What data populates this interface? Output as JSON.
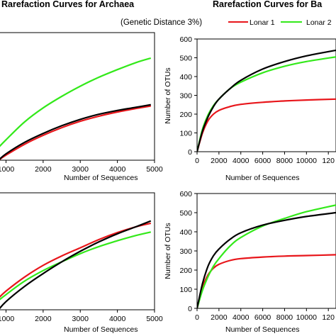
{
  "figure": {
    "title_left": "Rarefaction Curves for Archaea",
    "title_right": "Rarefaction Curves for Ba",
    "subtitle": "(Genetic Distance  3%)"
  },
  "legend": [
    {
      "label": "Lonar 1",
      "color": "#e8161b"
    },
    {
      "label": "Lonar 2",
      "color": "#33e91a"
    },
    {
      "label": "",
      "color": "#000000"
    }
  ],
  "chart_data": [
    {
      "type": "line",
      "panel": "top-left",
      "xlabel": "Number of Sequences",
      "ylabel": "",
      "xlim": [
        800,
        5000
      ],
      "xticks": [
        "1000",
        "2000",
        "3000",
        "4000",
        "5000"
      ],
      "grid": false,
      "series": [
        {
          "name": "Lonar 1",
          "color": "#e8161b",
          "x": [
            800,
            1000,
            1500,
            2000,
            2500,
            3000,
            3500,
            4000,
            4500,
            4900
          ],
          "y": [
            0.0,
            0.04,
            0.125,
            0.195,
            0.255,
            0.305,
            0.345,
            0.378,
            0.405,
            0.425
          ]
        },
        {
          "name": "Lonar 2",
          "color": "#33e91a",
          "x": [
            800,
            1000,
            1500,
            2000,
            2500,
            3000,
            3500,
            4000,
            4500,
            4900
          ],
          "y": [
            0.1,
            0.16,
            0.3,
            0.41,
            0.5,
            0.58,
            0.65,
            0.71,
            0.765,
            0.8
          ]
        },
        {
          "color": "#000000",
          "x": [
            800,
            1000,
            1500,
            2000,
            2500,
            3000,
            3500,
            4000,
            4500,
            4900
          ],
          "y": [
            0.0,
            0.05,
            0.14,
            0.21,
            0.27,
            0.32,
            0.36,
            0.39,
            0.415,
            0.435
          ]
        }
      ]
    },
    {
      "type": "line",
      "panel": "top-right",
      "xlabel": "Number of Sequences",
      "ylabel": "Number of OTUs",
      "xlim": [
        0,
        12700
      ],
      "ylim": [
        0,
        600
      ],
      "xticks": [
        "0",
        "2000",
        "4000",
        "6000",
        "8000",
        "10000",
        "120"
      ],
      "yticks": [
        "0",
        "100",
        "200",
        "300",
        "400",
        "500",
        "600"
      ],
      "grid": false,
      "series": [
        {
          "name": "Lonar 1",
          "color": "#e8161b",
          "x": [
            0,
            500,
            1000,
            1500,
            2000,
            3000,
            4000,
            6000,
            8000,
            10000,
            12700
          ],
          "y": [
            0,
            100,
            165,
            200,
            220,
            240,
            252,
            263,
            270,
            275,
            280
          ]
        },
        {
          "name": "Lonar 2",
          "color": "#33e91a",
          "x": [
            0,
            500,
            1000,
            1500,
            2000,
            3000,
            4000,
            6000,
            8000,
            10000,
            12700
          ],
          "y": [
            0,
            120,
            195,
            245,
            280,
            335,
            370,
            420,
            455,
            480,
            505
          ]
        },
        {
          "color": "#000000",
          "x": [
            0,
            500,
            1000,
            1500,
            2000,
            3000,
            4000,
            6000,
            8000,
            10000,
            12700
          ],
          "y": [
            0,
            110,
            185,
            240,
            280,
            335,
            380,
            440,
            480,
            510,
            540
          ]
        }
      ]
    },
    {
      "type": "line",
      "panel": "bottom-left",
      "xlabel": "Number of Sequences",
      "ylabel": "",
      "xlim": [
        800,
        5000
      ],
      "xticks": [
        "1000",
        "2000",
        "3000",
        "4000",
        "5000"
      ],
      "grid": false,
      "series": [
        {
          "name": "Lonar 1",
          "color": "#e8161b",
          "x": [
            800,
            1000,
            1500,
            2000,
            2500,
            3000,
            3500,
            4000,
            4500,
            4900
          ],
          "y": [
            0.1,
            0.16,
            0.28,
            0.38,
            0.46,
            0.53,
            0.6,
            0.66,
            0.71,
            0.74
          ]
        },
        {
          "name": "Lonar 2",
          "color": "#33e91a",
          "x": [
            800,
            1000,
            1500,
            2000,
            2500,
            3000,
            3500,
            4000,
            4500,
            4900
          ],
          "y": [
            0.08,
            0.13,
            0.245,
            0.335,
            0.41,
            0.48,
            0.54,
            0.59,
            0.635,
            0.665
          ]
        },
        {
          "color": "#000000",
          "x": [
            800,
            1000,
            1500,
            2000,
            2500,
            3000,
            3500,
            4000,
            4500,
            4900
          ],
          "y": [
            0.0,
            0.07,
            0.2,
            0.31,
            0.41,
            0.5,
            0.58,
            0.65,
            0.71,
            0.76
          ]
        }
      ]
    },
    {
      "type": "line",
      "panel": "bottom-right",
      "xlabel": "Number of Sequences",
      "ylabel": "Number of OTUs",
      "xlim": [
        0,
        12700
      ],
      "ylim": [
        0,
        600
      ],
      "xticks": [
        "0",
        "2000",
        "4000",
        "6000",
        "8000",
        "10000",
        "120"
      ],
      "yticks": [
        "0",
        "100",
        "200",
        "300",
        "400",
        "500",
        "600"
      ],
      "grid": false,
      "series": [
        {
          "name": "Lonar 1",
          "color": "#e8161b",
          "x": [
            0,
            500,
            1000,
            1500,
            2000,
            3000,
            4000,
            6000,
            8000,
            10000,
            12700
          ],
          "y": [
            0,
            110,
            175,
            210,
            230,
            250,
            260,
            268,
            273,
            276,
            280
          ]
        },
        {
          "name": "Lonar 2",
          "color": "#33e91a",
          "x": [
            0,
            500,
            1000,
            1500,
            2000,
            3000,
            4000,
            6000,
            8000,
            10000,
            12700
          ],
          "y": [
            0,
            95,
            165,
            220,
            260,
            325,
            370,
            430,
            470,
            505,
            540
          ]
        },
        {
          "color": "#000000",
          "x": [
            0,
            500,
            1000,
            1500,
            2000,
            3000,
            4000,
            6000,
            8000,
            10000,
            12700
          ],
          "y": [
            0,
            130,
            220,
            275,
            310,
            360,
            395,
            435,
            460,
            480,
            500
          ]
        }
      ]
    }
  ]
}
